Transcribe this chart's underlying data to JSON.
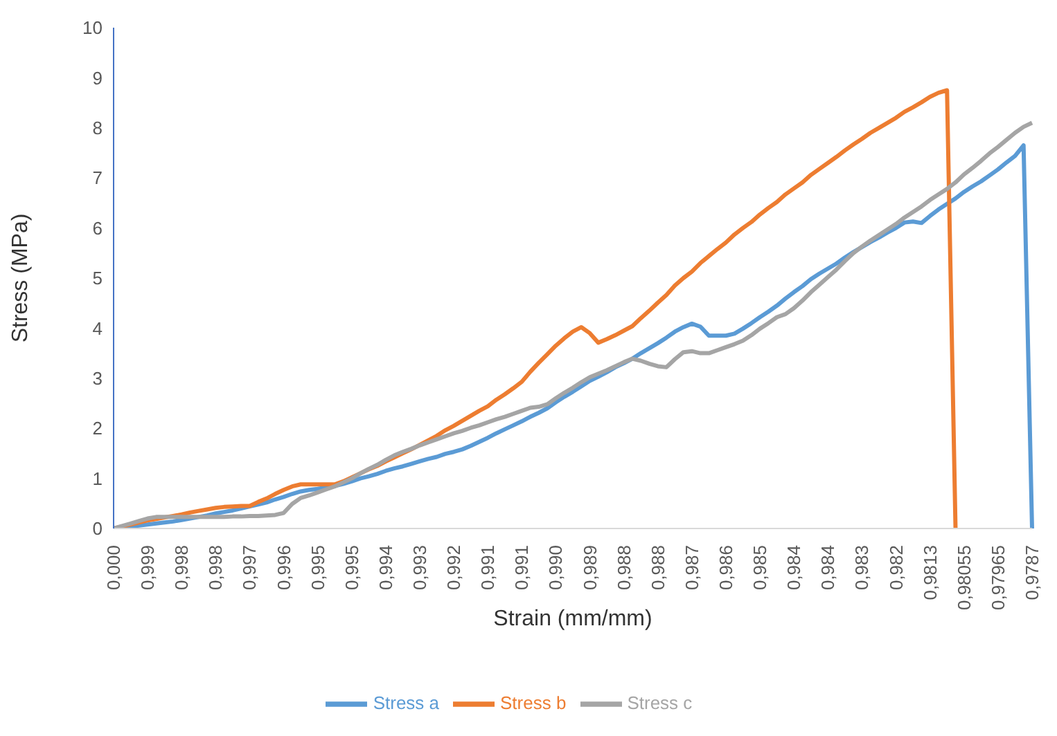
{
  "chart_data": {
    "type": "line",
    "xlabel": "Strain (mm/mm)",
    "ylabel": "Stress (MPa)",
    "categories": [
      "0,000",
      null,
      null,
      null,
      "0,999",
      null,
      null,
      null,
      "0,998",
      null,
      null,
      null,
      "0,998",
      null,
      null,
      null,
      "0,997",
      null,
      null,
      null,
      "0,996",
      null,
      null,
      null,
      "0,995",
      null,
      null,
      null,
      "0,995",
      null,
      null,
      null,
      "0,994",
      null,
      null,
      null,
      "0,993",
      null,
      null,
      null,
      "0,992",
      null,
      null,
      null,
      "0,991",
      null,
      null,
      null,
      "0,991",
      null,
      null,
      null,
      "0,990",
      null,
      null,
      null,
      "0,989",
      null,
      null,
      null,
      "0,988",
      null,
      null,
      null,
      "0,988",
      null,
      null,
      null,
      "0,987",
      null,
      null,
      null,
      "0,986",
      null,
      null,
      null,
      "0,985",
      null,
      null,
      null,
      "0,984",
      null,
      null,
      null,
      "0,984",
      null,
      null,
      null,
      "0,983",
      null,
      null,
      null,
      "0,982",
      null,
      null,
      null,
      "0,9813",
      null,
      null,
      null,
      "0,98055",
      null,
      null,
      null,
      "0,97965",
      null,
      null,
      null,
      "0,9787"
    ],
    "series": [
      {
        "name": "Stress a",
        "color": "#5b9bd5",
        "values": [
          0,
          0.02,
          0.04,
          0.06,
          0.08,
          0.1,
          0.12,
          0.14,
          0.17,
          0.2,
          0.23,
          0.26,
          0.3,
          0.33,
          0.36,
          0.4,
          0.44,
          0.48,
          0.52,
          0.58,
          0.63,
          0.69,
          0.74,
          0.77,
          0.79,
          0.82,
          0.85,
          0.89,
          0.94,
          1.0,
          1.04,
          1.09,
          1.15,
          1.2,
          1.24,
          1.29,
          1.34,
          1.39,
          1.43,
          1.49,
          1.53,
          1.58,
          1.65,
          1.73,
          1.81,
          1.9,
          1.98,
          2.06,
          2.14,
          2.23,
          2.31,
          2.4,
          2.52,
          2.63,
          2.73,
          2.84,
          2.95,
          3.03,
          3.12,
          3.22,
          3.3,
          3.39,
          3.5,
          3.6,
          3.7,
          3.81,
          3.93,
          4.02,
          4.09,
          4.03,
          3.85,
          3.85,
          3.85,
          3.89,
          3.99,
          4.1,
          4.22,
          4.33,
          4.45,
          4.59,
          4.72,
          4.84,
          4.98,
          5.09,
          5.19,
          5.29,
          5.41,
          5.52,
          5.62,
          5.72,
          5.81,
          5.91,
          6.0,
          6.11,
          6.13,
          6.1,
          6.24,
          6.37,
          6.48,
          6.59,
          6.72,
          6.83,
          6.93,
          7.05,
          7.17,
          7.31,
          7.44,
          7.65,
          0
        ]
      },
      {
        "name": "Stress b",
        "color": "#ed7d31",
        "values": [
          0,
          0.04,
          0.08,
          0.12,
          0.16,
          0.19,
          0.22,
          0.25,
          0.28,
          0.32,
          0.35,
          0.38,
          0.41,
          0.43,
          0.44,
          0.45,
          0.45,
          0.53,
          0.6,
          0.69,
          0.77,
          0.84,
          0.88,
          0.88,
          0.88,
          0.88,
          0.88,
          0.94,
          1.02,
          1.1,
          1.18,
          1.25,
          1.34,
          1.42,
          1.5,
          1.58,
          1.67,
          1.76,
          1.85,
          1.96,
          2.05,
          2.15,
          2.25,
          2.35,
          2.44,
          2.57,
          2.68,
          2.8,
          2.93,
          3.13,
          3.31,
          3.48,
          3.65,
          3.8,
          3.93,
          4.02,
          3.9,
          3.71,
          3.78,
          3.86,
          3.95,
          4.04,
          4.2,
          4.35,
          4.51,
          4.66,
          4.85,
          5.0,
          5.13,
          5.3,
          5.44,
          5.58,
          5.71,
          5.87,
          6.0,
          6.12,
          6.27,
          6.4,
          6.52,
          6.67,
          6.79,
          6.91,
          7.06,
          7.18,
          7.3,
          7.42,
          7.55,
          7.67,
          7.78,
          7.9,
          8.0,
          8.1,
          8.2,
          8.32,
          8.41,
          8.51,
          8.62,
          8.7,
          8.75,
          0,
          null,
          null,
          null,
          null,
          null,
          null,
          null,
          null,
          null
        ]
      },
      {
        "name": "Stress c",
        "color": "#a5a5a5",
        "values": [
          0,
          0.05,
          0.1,
          0.15,
          0.2,
          0.23,
          0.23,
          0.23,
          0.23,
          0.23,
          0.23,
          0.23,
          0.23,
          0.23,
          0.24,
          0.24,
          0.25,
          0.25,
          0.26,
          0.27,
          0.31,
          0.49,
          0.61,
          0.66,
          0.72,
          0.78,
          0.84,
          0.92,
          1.0,
          1.1,
          1.19,
          1.27,
          1.37,
          1.46,
          1.53,
          1.59,
          1.66,
          1.72,
          1.78,
          1.84,
          1.9,
          1.95,
          2.01,
          2.06,
          2.12,
          2.18,
          2.23,
          2.29,
          2.35,
          2.41,
          2.43,
          2.48,
          2.6,
          2.71,
          2.81,
          2.92,
          3.02,
          3.09,
          3.16,
          3.24,
          3.32,
          3.39,
          3.35,
          3.29,
          3.24,
          3.22,
          3.38,
          3.52,
          3.54,
          3.5,
          3.5,
          3.56,
          3.62,
          3.68,
          3.75,
          3.86,
          3.99,
          4.1,
          4.22,
          4.28,
          4.4,
          4.55,
          4.72,
          4.87,
          5.02,
          5.17,
          5.34,
          5.5,
          5.63,
          5.75,
          5.86,
          5.97,
          6.08,
          6.21,
          6.32,
          6.43,
          6.56,
          6.67,
          6.78,
          6.91,
          7.07,
          7.2,
          7.34,
          7.49,
          7.62,
          7.76,
          7.9,
          8.02,
          8.1
        ]
      }
    ],
    "ylim": [
      0,
      10
    ],
    "yticks": [
      0,
      1,
      2,
      3,
      4,
      5,
      6,
      7,
      8,
      9,
      10
    ],
    "grid": false,
    "legend": "bottom",
    "line_style": "solid"
  }
}
